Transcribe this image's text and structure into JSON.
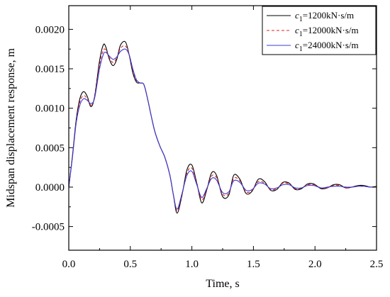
{
  "chart_data": {
    "type": "line",
    "title": "",
    "xlabel": "Time, s",
    "ylabel": "Midspan displacement response, m",
    "xlim": [
      0,
      2.5
    ],
    "ylim": [
      -0.0008,
      0.0023
    ],
    "xticks": [
      0.0,
      0.5,
      1.0,
      1.5,
      2.0,
      2.5
    ],
    "xtick_labels": [
      "0.0",
      "0.5",
      "1.0",
      "1.5",
      "2.0",
      "2.5"
    ],
    "yticks": [
      -0.0005,
      0.0,
      0.0005,
      0.001,
      0.0015,
      0.002
    ],
    "ytick_labels": [
      "-0.0005",
      "0.0000",
      "0.0005",
      "0.0010",
      "0.0015",
      "0.0020"
    ],
    "grid": false,
    "legend_position": "top-right",
    "series": [
      {
        "name_prefix": "c",
        "name_sub": "1",
        "name_suffix": "=1200kN·s/m",
        "color": "#000000",
        "dash": "solid",
        "x": [
          0.0,
          0.03,
          0.06,
          0.09,
          0.12,
          0.15,
          0.18,
          0.21,
          0.25,
          0.28,
          0.3,
          0.33,
          0.36,
          0.39,
          0.42,
          0.46,
          0.49,
          0.52,
          0.55,
          0.58,
          0.61,
          0.64,
          0.67,
          0.7,
          0.74,
          0.78,
          0.82,
          0.85,
          0.88,
          0.92,
          0.96,
          1.0,
          1.04,
          1.08,
          1.12,
          1.16,
          1.2,
          1.25,
          1.3,
          1.34,
          1.39,
          1.44,
          1.49,
          1.54,
          1.59,
          1.64,
          1.69,
          1.74,
          1.79,
          1.84,
          1.89,
          1.94,
          1.99,
          2.05,
          2.1,
          2.15,
          2.2,
          2.25,
          2.3,
          2.35,
          2.4,
          2.45,
          2.5
        ],
        "y": [
          0.0,
          0.0004,
          0.00085,
          0.00112,
          0.00121,
          0.00115,
          0.00102,
          0.00115,
          0.0016,
          0.0018,
          0.00178,
          0.00162,
          0.00154,
          0.00162,
          0.0018,
          0.00184,
          0.00168,
          0.00145,
          0.00133,
          0.00132,
          0.0013,
          0.00112,
          0.0009,
          0.0007,
          0.00052,
          0.00038,
          0.00016,
          -0.0001,
          -0.00033,
          -0.0001,
          0.00022,
          0.00028,
          5e-05,
          -0.0002,
          -4e-05,
          0.00018,
          0.00015,
          -0.00012,
          -0.0001,
          0.00015,
          0.0001,
          -8e-05,
          -5e-05,
          0.0001,
          7e-05,
          -4e-05,
          -3e-05,
          6e-05,
          5e-05,
          -3e-05,
          -2e-05,
          4e-05,
          4e-05,
          -2e-05,
          -1e-05,
          3e-05,
          3e-05,
          -1e-05,
          0.0,
          2e-05,
          2e-05,
          0.0,
          1e-05
        ]
      },
      {
        "name_prefix": "c",
        "name_sub": "1",
        "name_suffix": "=12000kN·s/m",
        "color": "#e02020",
        "dash": "dashed",
        "x": [
          0.0,
          0.03,
          0.06,
          0.09,
          0.12,
          0.15,
          0.18,
          0.21,
          0.25,
          0.28,
          0.3,
          0.33,
          0.36,
          0.39,
          0.42,
          0.46,
          0.49,
          0.52,
          0.55,
          0.58,
          0.61,
          0.64,
          0.67,
          0.7,
          0.74,
          0.78,
          0.82,
          0.85,
          0.88,
          0.92,
          0.96,
          1.0,
          1.04,
          1.08,
          1.12,
          1.16,
          1.2,
          1.25,
          1.3,
          1.34,
          1.39,
          1.44,
          1.49,
          1.54,
          1.59,
          1.64,
          1.69,
          1.74,
          1.79,
          1.84,
          1.89,
          1.94,
          1.99,
          2.05,
          2.1,
          2.15,
          2.2,
          2.25,
          2.3,
          2.35,
          2.4,
          2.45,
          2.5
        ],
        "y": [
          0.0,
          0.00039,
          0.00083,
          0.00108,
          0.00116,
          0.00112,
          0.00104,
          0.00114,
          0.00155,
          0.00173,
          0.00174,
          0.00164,
          0.00158,
          0.00164,
          0.00176,
          0.00179,
          0.00168,
          0.00148,
          0.00135,
          0.00132,
          0.0013,
          0.00112,
          0.0009,
          0.0007,
          0.00052,
          0.00038,
          0.00016,
          -0.0001,
          -0.0003,
          -9e-05,
          0.00018,
          0.00024,
          4e-05,
          -0.00016,
          -3e-05,
          0.00014,
          0.00012,
          -9e-05,
          -8e-05,
          0.00011,
          8e-05,
          -6e-05,
          -4e-05,
          7e-05,
          5e-05,
          -3e-05,
          -2e-05,
          5e-05,
          4e-05,
          -2e-05,
          -1e-05,
          3e-05,
          3e-05,
          -1e-05,
          -1e-05,
          2e-05,
          2e-05,
          -1e-05,
          0.0,
          1e-05,
          1e-05,
          0.0,
          1e-05
        ]
      },
      {
        "name_prefix": "c",
        "name_sub": "1",
        "name_suffix": "=24000kN·s/m",
        "color": "#3b3bd6",
        "dash": "solid",
        "x": [
          0.0,
          0.03,
          0.06,
          0.09,
          0.12,
          0.15,
          0.18,
          0.21,
          0.25,
          0.28,
          0.3,
          0.33,
          0.36,
          0.39,
          0.42,
          0.46,
          0.49,
          0.52,
          0.55,
          0.58,
          0.61,
          0.64,
          0.67,
          0.7,
          0.74,
          0.78,
          0.82,
          0.85,
          0.88,
          0.92,
          0.96,
          1.0,
          1.04,
          1.08,
          1.12,
          1.16,
          1.2,
          1.25,
          1.3,
          1.34,
          1.39,
          1.44,
          1.49,
          1.54,
          1.59,
          1.64,
          1.69,
          1.74,
          1.79,
          1.84,
          1.89,
          1.94,
          1.99,
          2.05,
          2.1,
          2.15,
          2.2,
          2.25,
          2.3,
          2.35,
          2.4,
          2.45,
          2.5
        ],
        "y": [
          0.0,
          0.00038,
          0.00081,
          0.00104,
          0.00112,
          0.0011,
          0.00106,
          0.00113,
          0.0015,
          0.00168,
          0.00171,
          0.00166,
          0.00162,
          0.00165,
          0.00172,
          0.00175,
          0.00168,
          0.0015,
          0.00136,
          0.00132,
          0.0013,
          0.00112,
          0.0009,
          0.0007,
          0.00052,
          0.00038,
          0.00016,
          -0.0001,
          -0.00028,
          -8e-05,
          0.00015,
          0.0002,
          3e-05,
          -0.00013,
          -2e-05,
          0.00011,
          9e-05,
          -7e-05,
          -6e-05,
          8e-05,
          6e-05,
          -4e-05,
          -3e-05,
          5e-05,
          4e-05,
          -2e-05,
          -1e-05,
          3e-05,
          3e-05,
          -1e-05,
          -1e-05,
          2e-05,
          2e-05,
          -1e-05,
          0.0,
          1e-05,
          1e-05,
          0.0,
          0.0,
          1e-05,
          1e-05,
          0.0,
          0.0
        ]
      }
    ]
  }
}
